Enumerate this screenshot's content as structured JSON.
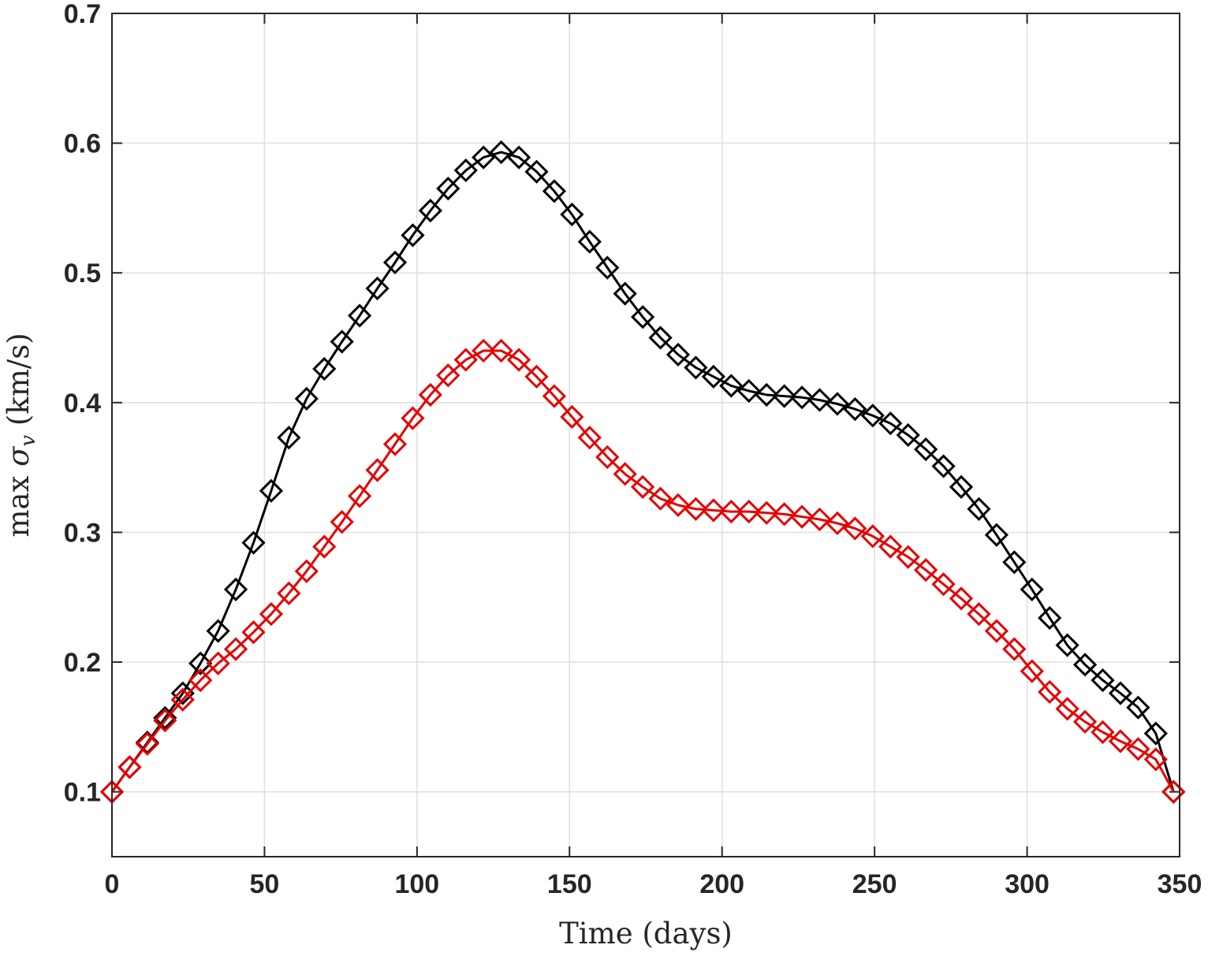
{
  "chart_data": {
    "type": "line",
    "title": "",
    "xlabel": "Time (days)",
    "ylabel_parts": [
      "max ",
      "σ",
      "v",
      " (km/s)"
    ],
    "xlim": [
      0,
      350
    ],
    "ylim": [
      0.05,
      0.7
    ],
    "xticks": [
      0,
      50,
      100,
      150,
      200,
      250,
      300,
      350
    ],
    "yticks": [
      0.1,
      0.2,
      0.3,
      0.4,
      0.5,
      0.6,
      0.7
    ],
    "xtick_labels": [
      "0",
      "50",
      "100",
      "150",
      "200",
      "250",
      "300",
      "350"
    ],
    "ytick_labels": [
      "0.1",
      "0.2",
      "0.3",
      "0.4",
      "0.5",
      "0.6",
      "0.7"
    ],
    "grid": true,
    "marker": "diamond",
    "x": [
      0,
      5.8,
      11.6,
      17.4,
      23.2,
      29,
      34.8,
      40.6,
      46.4,
      52.2,
      58,
      63.8,
      69.6,
      75.4,
      81.2,
      87,
      92.8,
      98.6,
      104.4,
      110.2,
      116,
      121.8,
      127.6,
      133.4,
      139.2,
      145,
      150.8,
      156.6,
      162.4,
      168.2,
      174,
      179.8,
      185.6,
      191.4,
      197.2,
      203,
      208.8,
      214.6,
      220.4,
      226.2,
      232,
      237.8,
      243.6,
      249.4,
      255.2,
      261,
      266.8,
      272.6,
      278.4,
      284.2,
      290,
      295.8,
      301.6,
      307.4,
      313.2,
      319,
      324.8,
      330.6,
      336.4,
      342.2,
      348
    ],
    "series": [
      {
        "color": "#000000",
        "values": [
          0.1,
          0.119,
          0.138,
          0.157,
          0.176,
          0.199,
          0.224,
          0.256,
          0.292,
          0.332,
          0.373,
          0.403,
          0.426,
          0.447,
          0.467,
          0.488,
          0.508,
          0.529,
          0.548,
          0.565,
          0.579,
          0.589,
          0.593,
          0.589,
          0.578,
          0.563,
          0.545,
          0.524,
          0.504,
          0.484,
          0.466,
          0.45,
          0.437,
          0.427,
          0.42,
          0.413,
          0.409,
          0.406,
          0.405,
          0.404,
          0.402,
          0.399,
          0.395,
          0.39,
          0.384,
          0.375,
          0.364,
          0.351,
          0.335,
          0.318,
          0.298,
          0.277,
          0.256,
          0.234,
          0.213,
          0.198,
          0.186,
          0.176,
          0.165,
          0.145,
          0.1
        ]
      },
      {
        "color": "#e60000",
        "values": [
          0.1,
          0.119,
          0.137,
          0.155,
          0.171,
          0.186,
          0.199,
          0.21,
          0.223,
          0.237,
          0.253,
          0.27,
          0.289,
          0.308,
          0.328,
          0.348,
          0.368,
          0.388,
          0.406,
          0.421,
          0.433,
          0.44,
          0.44,
          0.433,
          0.42,
          0.405,
          0.389,
          0.373,
          0.358,
          0.345,
          0.335,
          0.326,
          0.321,
          0.318,
          0.317,
          0.316,
          0.316,
          0.315,
          0.314,
          0.312,
          0.31,
          0.307,
          0.303,
          0.297,
          0.289,
          0.281,
          0.271,
          0.26,
          0.249,
          0.237,
          0.224,
          0.21,
          0.193,
          0.177,
          0.164,
          0.154,
          0.146,
          0.139,
          0.133,
          0.125,
          0.1
        ]
      }
    ]
  }
}
